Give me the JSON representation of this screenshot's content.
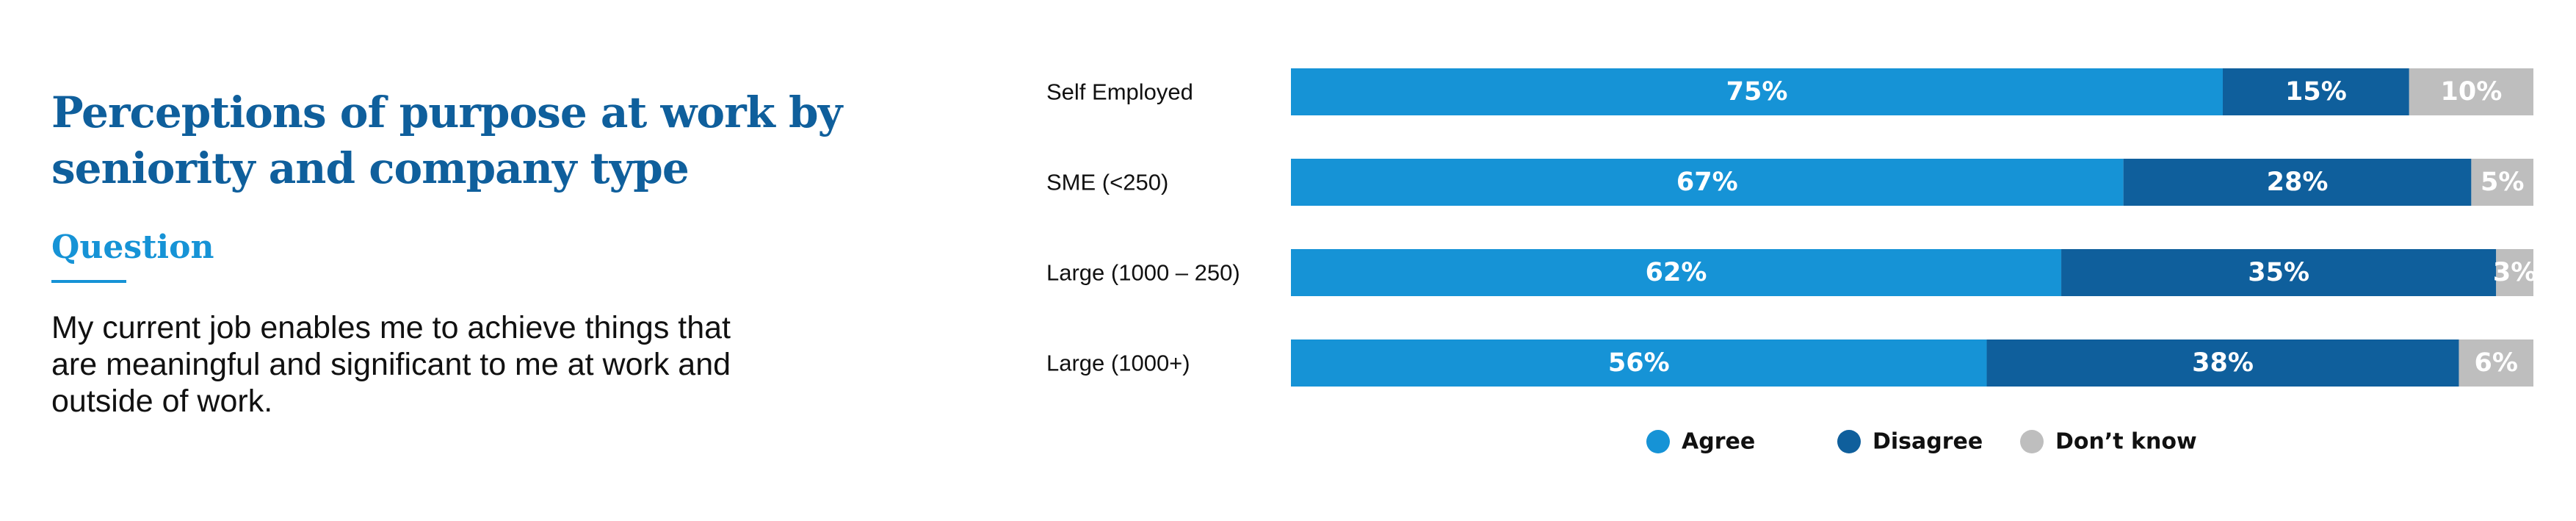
{
  "title": "Perceptions of purpose at work by seniority and company type",
  "question_label": "Question",
  "question_text": "My current job enables me to achieve things that are meaningful and significant to me at work and outside of work.",
  "colors": {
    "agree": "#1693D6",
    "disagree": "#0F5F9C",
    "dont_know": "#BEBEBE"
  },
  "chart_data": {
    "type": "bar",
    "orientation": "horizontal",
    "stacked": true,
    "categories": [
      "Self Employed",
      "SME (<250)",
      "Large (1000 – 250)",
      "Large (1000+)"
    ],
    "series": [
      {
        "name": "Agree",
        "values": [
          75,
          67,
          62,
          56
        ],
        "labels": [
          "75%",
          "67%",
          "62%",
          "56%"
        ]
      },
      {
        "name": "Disagree",
        "values": [
          15,
          28,
          35,
          38
        ],
        "labels": [
          "15%",
          "28%",
          "35%",
          "38%"
        ]
      },
      {
        "name": "Don’t know",
        "values": [
          10,
          5,
          3,
          6
        ],
        "labels": [
          "10%",
          "5%",
          "3%",
          "6%"
        ]
      }
    ],
    "legend_position": "bottom",
    "grid": false
  }
}
